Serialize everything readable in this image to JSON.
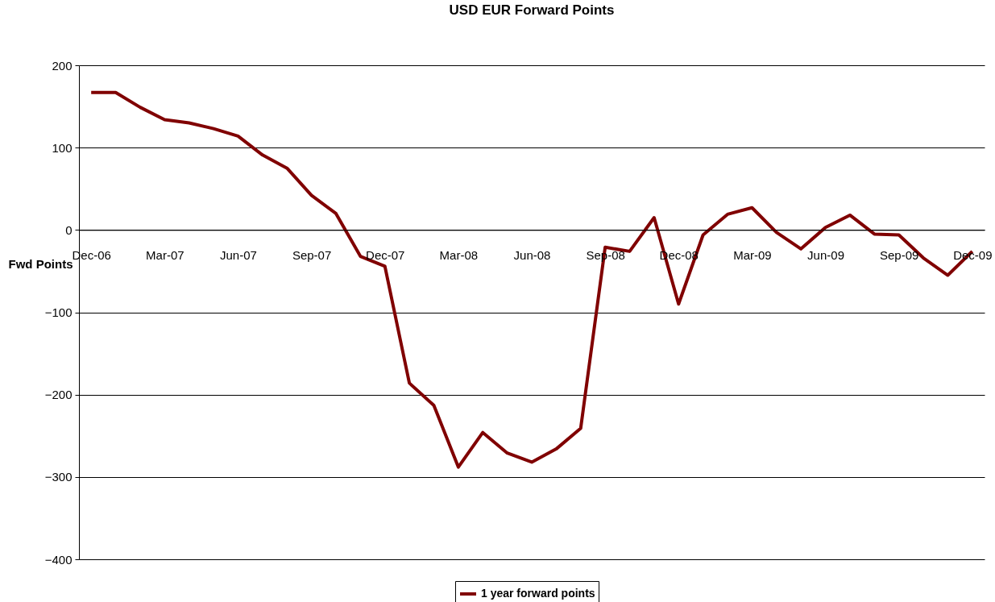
{
  "chart_data": {
    "type": "line",
    "title": "USD EUR Forward Points",
    "ylabel": "Fwd Points",
    "categories": [
      "Dec-06",
      null,
      null,
      "Mar-07",
      null,
      null,
      "Jun-07",
      null,
      null,
      "Sep-07",
      null,
      null,
      "Dec-07",
      null,
      null,
      "Mar-08",
      null,
      null,
      "Jun-08",
      null,
      null,
      "Sep-08",
      null,
      null,
      "Dec-08",
      null,
      null,
      "Mar-09",
      null,
      null,
      "Jun-09",
      null,
      null,
      "Sep-09",
      null,
      null,
      "Dec-09"
    ],
    "series": [
      {
        "name": "1 year forward points",
        "color": "#800000",
        "values": [
          167,
          167,
          149,
          134,
          130,
          123,
          114,
          91,
          75,
          42,
          20,
          -32,
          -44,
          -186,
          -213,
          -288,
          -246,
          -271,
          -282,
          -266,
          -241,
          -21,
          -26,
          15,
          -90,
          -6,
          19,
          27,
          -3,
          -23,
          3,
          18,
          -5,
          -6,
          -34,
          -55,
          -26
        ]
      }
    ],
    "ylim": [
      -400,
      200
    ],
    "yticks": [
      -400,
      -300,
      -200,
      -100,
      0,
      100,
      200
    ],
    "grid": "y",
    "legend": "bottom",
    "line_style": "solid",
    "marker": "none"
  }
}
